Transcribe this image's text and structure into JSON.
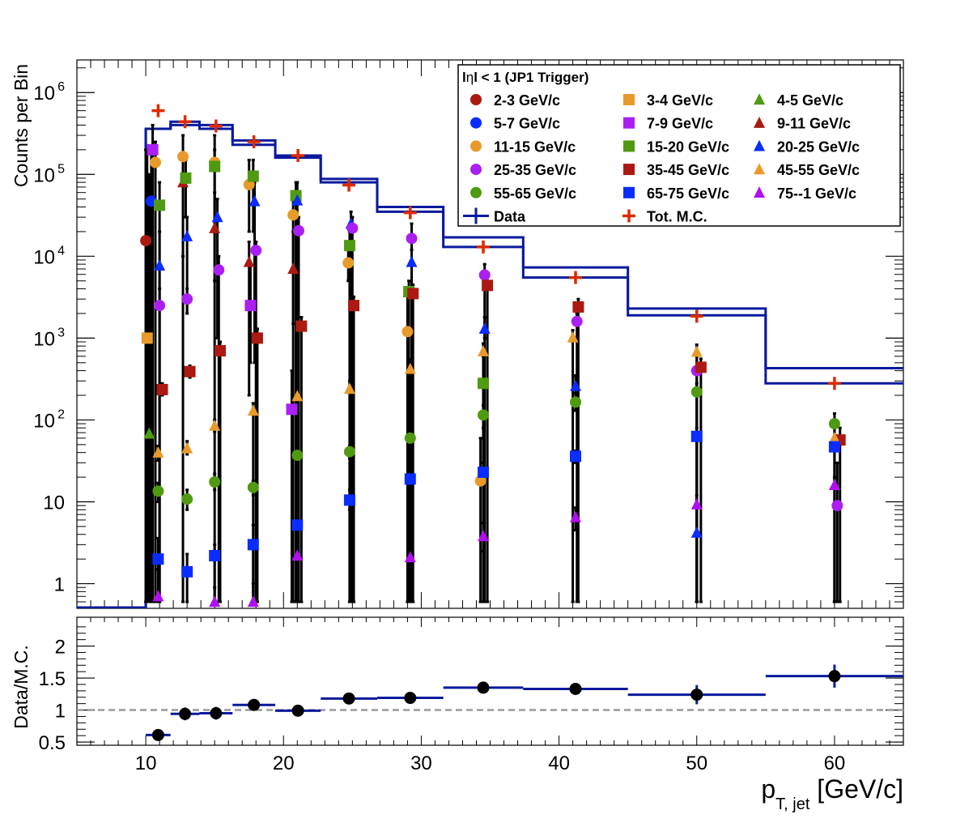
{
  "chart_data": [
    {
      "type": "scatter",
      "ylabel": "Counts per Bin",
      "yscale": "log",
      "ylim": [
        0.5,
        2500000
      ],
      "xlim": [
        5,
        65
      ],
      "legend": {
        "title": "|η| < 1 (JP1 Trigger)",
        "title_parts": [
          "l",
          "η",
          "l < 1 (JP1 Trigger)"
        ],
        "placement": "top-right"
      },
      "x_ticks": [
        "10",
        "20",
        "30",
        "40",
        "50",
        "60"
      ],
      "y_ticks": [
        {
          "value": 1,
          "label": "1"
        },
        {
          "value": 10,
          "label": "10"
        },
        {
          "value": 100,
          "label": "10",
          "exp": "2"
        },
        {
          "value": 1000,
          "label": "10",
          "exp": "3"
        },
        {
          "value": 10000,
          "label": "10",
          "exp": "4"
        },
        {
          "value": 100000,
          "label": "10",
          "exp": "5"
        },
        {
          "value": 1000000,
          "label": "10",
          "exp": "6"
        }
      ],
      "bins": [
        {
          "lo": 10.0,
          "hi": 11.8,
          "center": 10.9
        },
        {
          "lo": 11.8,
          "hi": 13.9,
          "center": 12.85
        },
        {
          "lo": 13.9,
          "hi": 16.3,
          "center": 15.1
        },
        {
          "lo": 16.3,
          "hi": 19.4,
          "center": 17.85
        },
        {
          "lo": 19.4,
          "hi": 22.7,
          "center": 21.05
        },
        {
          "lo": 22.7,
          "hi": 26.8,
          "center": 24.75
        },
        {
          "lo": 26.8,
          "hi": 31.6,
          "center": 29.2
        },
        {
          "lo": 31.6,
          "hi": 37.4,
          "center": 34.5
        },
        {
          "lo": 37.4,
          "hi": 45.0,
          "center": 41.2
        },
        {
          "lo": 45.0,
          "hi": 55.0,
          "center": 50.0
        },
        {
          "lo": 55.0,
          "hi": 65.0,
          "center": 60.0
        }
      ],
      "data_hist": {
        "name": "Data",
        "color": "#0a1a9c",
        "first_bin_lo": 10.0,
        "values": [
          360000,
          400000,
          360000,
          230000,
          160000,
          80000,
          35000,
          13000,
          5500,
          1900,
          280
        ]
      },
      "mc_hist": {
        "color": "#0a1a9c",
        "values": [
          360000,
          440000,
          400000,
          260000,
          170000,
          88000,
          40000,
          17000,
          7300,
          2300,
          430
        ]
      },
      "tot_mc": {
        "name": "Tot. M.C.",
        "color": "#dd2a00",
        "x": [
          10.9,
          12.85,
          15.1,
          17.85,
          21.05,
          24.75,
          29.2,
          34.5,
          41.2,
          50.0,
          60.0
        ],
        "y": [
          600000,
          440000,
          390000,
          250000,
          170000,
          74000,
          34000,
          13000,
          5500,
          1850,
          280
        ]
      },
      "series": [
        {
          "name": "2-3 GeV/c",
          "color": "#aa1a12",
          "marker": "circle",
          "points": [
            {
              "x": 10.0,
              "y": 15500,
              "elo": 0.6,
              "ehi": 200000
            }
          ]
        },
        {
          "name": "3-4 GeV/c",
          "color": "#e89b2b",
          "marker": "square",
          "points": [
            {
              "x": 10.1,
              "y": 1000,
              "elo": 0.6,
              "ehi": 200000
            }
          ]
        },
        {
          "name": "4-5 GeV/c",
          "color": "#4f9a12",
          "marker": "triangle",
          "points": [
            {
              "x": 10.25,
              "y": 68,
              "elo": 0.6,
              "ehi": 100000
            }
          ]
        },
        {
          "name": "5-7 GeV/c",
          "color": "#0a2cff",
          "marker": "circle",
          "points": [
            {
              "x": 10.4,
              "y": 47000,
              "elo": 0.6,
              "ehi": 200000
            }
          ]
        },
        {
          "name": "7-9 GeV/c",
          "color": "#aa20f2",
          "marker": "square",
          "points": [
            {
              "x": 10.5,
              "y": 200000,
              "elo": 0.6,
              "ehi": 400000
            },
            {
              "x": 17.6,
              "y": 2500,
              "elo": 500,
              "ehi": 8000
            },
            {
              "x": 20.6,
              "y": 135,
              "elo": 0.6,
              "ehi": 400
            }
          ]
        },
        {
          "name": "9-11 GeV/c",
          "color": "#aa1a12",
          "marker": "triangle",
          "points": [
            {
              "x": 12.7,
              "y": 80000,
              "elo": 0.6,
              "ehi": 150000
            },
            {
              "x": 15.0,
              "y": 22000,
              "elo": 0.6,
              "ehi": 60000
            },
            {
              "x": 17.5,
              "y": 8500,
              "elo": 200,
              "ehi": 15000
            },
            {
              "x": 20.7,
              "y": 7000,
              "elo": 0.6,
              "ehi": 20000
            }
          ]
        },
        {
          "name": "11-15 GeV/c",
          "color": "#e89b2b",
          "marker": "circle",
          "points": [
            {
              "x": 10.7,
              "y": 140000,
              "elo": 0.6,
              "ehi": 250000
            },
            {
              "x": 12.7,
              "y": 165000,
              "elo": 10000,
              "ehi": 300000
            },
            {
              "x": 15.0,
              "y": 140000,
              "elo": 5000,
              "ehi": 300000
            },
            {
              "x": 17.5,
              "y": 75000,
              "elo": 20000,
              "ehi": 150000
            },
            {
              "x": 20.7,
              "y": 32000,
              "elo": 1500,
              "ehi": 60000
            },
            {
              "x": 24.7,
              "y": 8300,
              "elo": 5000,
              "ehi": 12000
            },
            {
              "x": 29.0,
              "y": 1200,
              "elo": 0.6,
              "ehi": 4000
            },
            {
              "x": 34.3,
              "y": 18,
              "elo": 0.6,
              "ehi": 60
            }
          ]
        },
        {
          "name": "15-20 GeV/c",
          "color": "#4f9a12",
          "marker": "square",
          "points": [
            {
              "x": 11.0,
              "y": 42000,
              "elo": 0.6,
              "ehi": 80000
            },
            {
              "x": 12.9,
              "y": 90000,
              "elo": 30000,
              "ehi": 150000
            },
            {
              "x": 15.0,
              "y": 125000,
              "elo": 20000,
              "ehi": 200000
            },
            {
              "x": 17.8,
              "y": 95000,
              "elo": 20000,
              "ehi": 150000
            },
            {
              "x": 20.9,
              "y": 55000,
              "elo": 0.6,
              "ehi": 80000
            },
            {
              "x": 24.8,
              "y": 13500,
              "elo": 0.6,
              "ehi": 20000
            },
            {
              "x": 29.1,
              "y": 3700,
              "elo": 0.6,
              "ehi": 5000
            },
            {
              "x": 34.5,
              "y": 280,
              "elo": 0.6,
              "ehi": 600
            }
          ]
        },
        {
          "name": "20-25 GeV/c",
          "color": "#0a2cff",
          "marker": "triangle",
          "points": [
            {
              "x": 11.0,
              "y": 7700,
              "elo": 0.6,
              "ehi": 20000
            },
            {
              "x": 13.0,
              "y": 17500,
              "elo": 2000,
              "ehi": 30000
            },
            {
              "x": 15.2,
              "y": 30000,
              "elo": 1000,
              "ehi": 50000
            },
            {
              "x": 17.9,
              "y": 47000,
              "elo": 500,
              "ehi": 80000
            },
            {
              "x": 21.0,
              "y": 48000,
              "elo": 0.6,
              "ehi": 80000
            },
            {
              "x": 24.9,
              "y": 25000,
              "elo": 0.6,
              "ehi": 35000
            },
            {
              "x": 29.3,
              "y": 8500,
              "elo": 0.6,
              "ehi": 12000
            },
            {
              "x": 34.6,
              "y": 1300,
              "elo": 1000,
              "ehi": 1800
            },
            {
              "x": 41.2,
              "y": 260,
              "elo": 180,
              "ehi": 350
            },
            {
              "x": 50.0,
              "y": 4.2,
              "elo": 0.6,
              "ehi": 10
            }
          ]
        },
        {
          "name": "25-35 GeV/c",
          "color": "#aa20f2",
          "marker": "circle",
          "points": [
            {
              "x": 11.0,
              "y": 2500,
              "elo": 0.6,
              "ehi": 4000
            },
            {
              "x": 13.0,
              "y": 3000,
              "elo": 2000,
              "ehi": 4000
            },
            {
              "x": 15.3,
              "y": 6800,
              "elo": 0.6,
              "ehi": 10000
            },
            {
              "x": 18.0,
              "y": 11800,
              "elo": 0.6,
              "ehi": 15000
            },
            {
              "x": 21.1,
              "y": 20500,
              "elo": 0.6,
              "ehi": 30000
            },
            {
              "x": 25.0,
              "y": 22000,
              "elo": 0.6,
              "ehi": 30000
            },
            {
              "x": 29.3,
              "y": 16500,
              "elo": 0.6,
              "ehi": 25000
            },
            {
              "x": 34.6,
              "y": 5900,
              "elo": 0.6,
              "ehi": 8000
            },
            {
              "x": 41.3,
              "y": 1600,
              "elo": 0.6,
              "ehi": 2000
            },
            {
              "x": 50.0,
              "y": 400,
              "elo": 0.6,
              "ehi": 600
            },
            {
              "x": 60.2,
              "y": 9,
              "elo": 0.6,
              "ehi": 30
            }
          ]
        },
        {
          "name": "35-45 GeV/c",
          "color": "#aa1a12",
          "marker": "square",
          "points": [
            {
              "x": 11.2,
              "y": 235,
              "elo": 200,
              "ehi": 280
            },
            {
              "x": 13.2,
              "y": 390,
              "elo": 330,
              "ehi": 460
            },
            {
              "x": 15.4,
              "y": 700,
              "elo": 0.6,
              "ehi": 900
            },
            {
              "x": 18.1,
              "y": 1000,
              "elo": 0.6,
              "ehi": 1300
            },
            {
              "x": 21.3,
              "y": 1400,
              "elo": 0.6,
              "ehi": 1800
            },
            {
              "x": 25.1,
              "y": 2500,
              "elo": 0.6,
              "ehi": 3200
            },
            {
              "x": 29.4,
              "y": 3500,
              "elo": 0.6,
              "ehi": 4500
            },
            {
              "x": 34.8,
              "y": 4400,
              "elo": 0.6,
              "ehi": 5500
            },
            {
              "x": 41.4,
              "y": 2400,
              "elo": 0.6,
              "ehi": 3000
            },
            {
              "x": 50.3,
              "y": 440,
              "elo": 0.6,
              "ehi": 560
            },
            {
              "x": 60.4,
              "y": 57,
              "elo": 0.6,
              "ehi": 80
            }
          ]
        },
        {
          "name": "45-55 GeV/c",
          "color": "#e89b2b",
          "marker": "triangle",
          "points": [
            {
              "x": 10.9,
              "y": 40,
              "elo": 32,
              "ehi": 48
            },
            {
              "x": 13.0,
              "y": 45,
              "elo": 38,
              "ehi": 55
            },
            {
              "x": 15.0,
              "y": 85,
              "elo": 72,
              "ehi": 100
            },
            {
              "x": 17.8,
              "y": 130,
              "elo": 0.6,
              "ehi": 160
            },
            {
              "x": 21.0,
              "y": 195,
              "elo": 0.6,
              "ehi": 240
            },
            {
              "x": 24.8,
              "y": 240,
              "elo": 0.6,
              "ehi": 300
            },
            {
              "x": 29.2,
              "y": 420,
              "elo": 0.6,
              "ehi": 550
            },
            {
              "x": 34.5,
              "y": 690,
              "elo": 0.6,
              "ehi": 860
            },
            {
              "x": 41.0,
              "y": 1020,
              "elo": 0.6,
              "ehi": 1250
            },
            {
              "x": 50.0,
              "y": 680,
              "elo": 0.6,
              "ehi": 830
            },
            {
              "x": 60.0,
              "y": 60,
              "elo": 0.6,
              "ehi": 80
            }
          ]
        },
        {
          "name": "55-65 GeV/c",
          "color": "#4f9a12",
          "marker": "circle",
          "points": [
            {
              "x": 10.9,
              "y": 13.5,
              "elo": 10,
              "ehi": 17
            },
            {
              "x": 13.0,
              "y": 10.8,
              "elo": 8,
              "ehi": 14
            },
            {
              "x": 15.0,
              "y": 17.5,
              "elo": 14,
              "ehi": 22
            },
            {
              "x": 17.8,
              "y": 15,
              "elo": 12,
              "ehi": 18
            },
            {
              "x": 21.0,
              "y": 37,
              "elo": 0.6,
              "ehi": 45
            },
            {
              "x": 24.8,
              "y": 41,
              "elo": 34,
              "ehi": 48
            },
            {
              "x": 29.2,
              "y": 60,
              "elo": 0.6,
              "ehi": 75
            },
            {
              "x": 34.5,
              "y": 115,
              "elo": 80,
              "ehi": 150
            },
            {
              "x": 41.2,
              "y": 165,
              "elo": 130,
              "ehi": 210
            },
            {
              "x": 50.0,
              "y": 220,
              "elo": 0.6,
              "ehi": 280
            },
            {
              "x": 60.0,
              "y": 90,
              "elo": 0.6,
              "ehi": 120
            }
          ]
        },
        {
          "name": "65-75 GeV/c",
          "color": "#0a2cff",
          "marker": "square",
          "points": [
            {
              "x": 10.9,
              "y": 2.0,
              "elo": 0.6,
              "ehi": 3.6
            },
            {
              "x": 13.0,
              "y": 1.4,
              "elo": 0.6,
              "ehi": 2.3
            },
            {
              "x": 15.0,
              "y": 2.2,
              "elo": 0.6,
              "ehi": 3.0
            },
            {
              "x": 17.8,
              "y": 3.0,
              "elo": 0.6,
              "ehi": 5.2
            },
            {
              "x": 21.0,
              "y": 5.2,
              "elo": 0.6,
              "ehi": 7.0
            },
            {
              "x": 24.8,
              "y": 10.5,
              "elo": 8,
              "ehi": 14
            },
            {
              "x": 29.2,
              "y": 19,
              "elo": 0.6,
              "ehi": 30
            },
            {
              "x": 34.5,
              "y": 23,
              "elo": 0.6,
              "ehi": 30
            },
            {
              "x": 41.2,
              "y": 36,
              "elo": 30,
              "ehi": 42
            },
            {
              "x": 50.0,
              "y": 63,
              "elo": 0.6,
              "ehi": 80
            },
            {
              "x": 60.0,
              "y": 47,
              "elo": 0.6,
              "ehi": 60
            }
          ]
        },
        {
          "name": "75--1 GeV/c",
          "color": "#b010f0",
          "marker": "triangle",
          "points": [
            {
              "x": 10.9,
              "y": 0.7,
              "elo": 0.6,
              "ehi": 1.5
            },
            {
              "x": 15.0,
              "y": 0.6,
              "elo": 0.6,
              "ehi": 0.9
            },
            {
              "x": 17.8,
              "y": 0.6,
              "elo": 0.6,
              "ehi": 1.0
            },
            {
              "x": 21.0,
              "y": 2.2,
              "elo": 0.6,
              "ehi": 3.4
            },
            {
              "x": 29.2,
              "y": 2.1,
              "elo": 1.5,
              "ehi": 2.8
            },
            {
              "x": 34.5,
              "y": 3.8,
              "elo": 2.5,
              "ehi": 5.5
            },
            {
              "x": 41.2,
              "y": 6.5,
              "elo": 4.5,
              "ehi": 8.5
            },
            {
              "x": 50.0,
              "y": 9.3,
              "elo": 0.6,
              "ehi": 12
            },
            {
              "x": 60.0,
              "y": 16,
              "elo": 0.6,
              "ehi": 20
            }
          ]
        }
      ]
    },
    {
      "type": "scatter",
      "ylabel": "Data/M.C.",
      "xlabel": "p",
      "xlabel_sub": "T, jet",
      "xlabel_unit": " [GeV/c]",
      "xlim": [
        5,
        65
      ],
      "ylim": [
        0.45,
        2.45
      ],
      "y_ticks": [
        "0.5",
        "1",
        "1.5",
        "2"
      ],
      "reference_line": 1,
      "ratio": {
        "color": "#0a1a9c",
        "marker_color": "#000000",
        "x": [
          10.9,
          12.85,
          15.1,
          17.85,
          21.05,
          24.75,
          29.2,
          34.5,
          41.2,
          50.0,
          60.0
        ],
        "y": [
          0.61,
          0.94,
          0.95,
          1.08,
          0.99,
          1.18,
          1.19,
          1.35,
          1.33,
          1.24,
          1.53
        ],
        "err": [
          0.04,
          0.1,
          0.1,
          0.06,
          0.06,
          0.06,
          0.06,
          0.06,
          0.08,
          0.15,
          0.18
        ]
      }
    }
  ]
}
